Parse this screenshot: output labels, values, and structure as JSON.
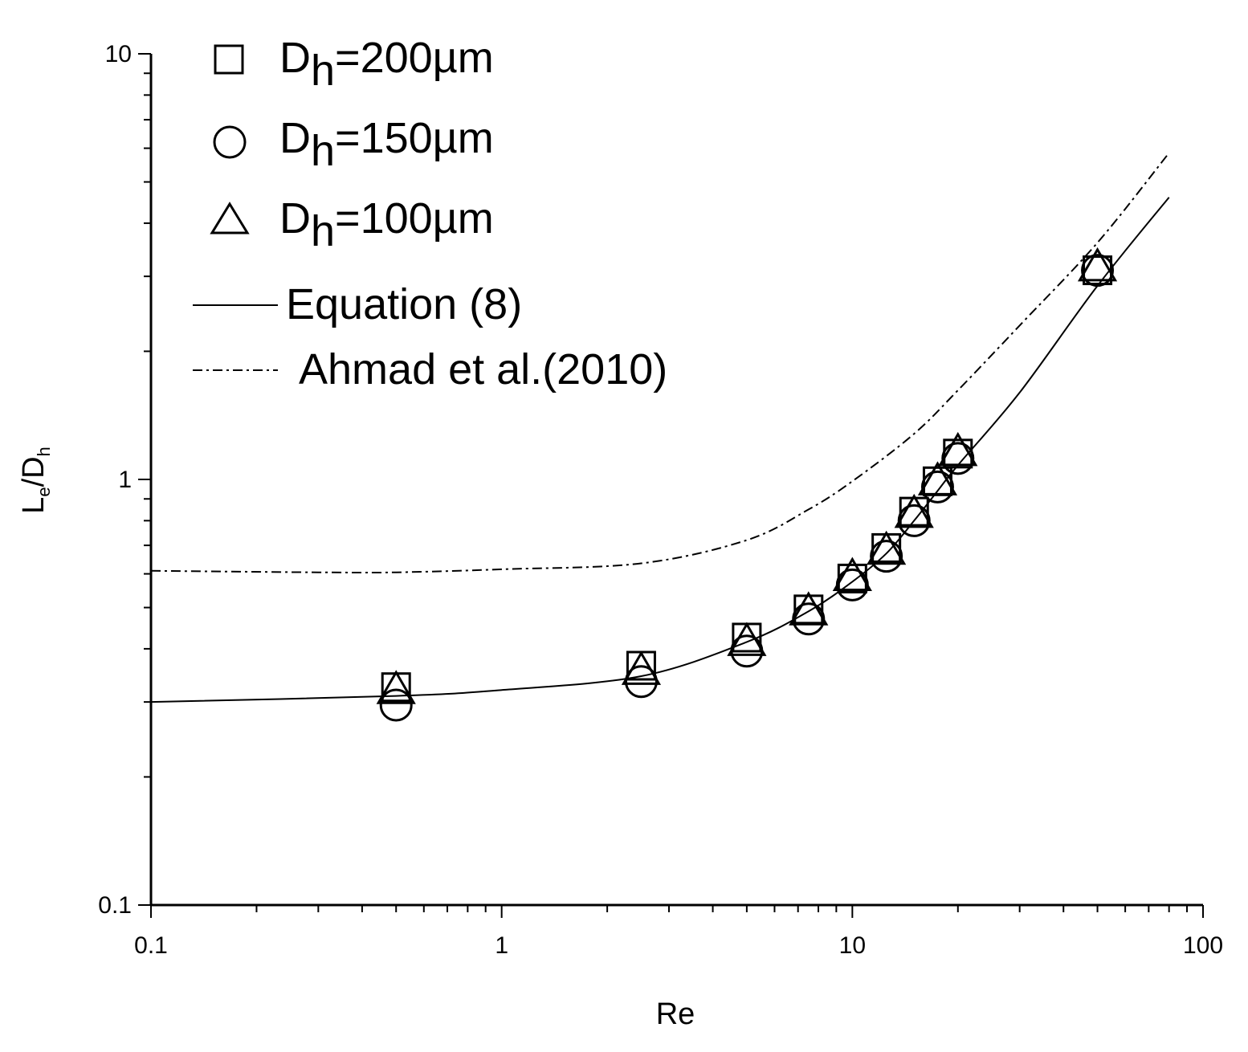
{
  "chart_data": {
    "type": "scatter",
    "title": "",
    "x_scale": "log",
    "y_scale": "log",
    "xlim": [
      0.1,
      100
    ],
    "ylim": [
      0.1,
      10
    ],
    "xlabel": "Re",
    "ylabel": {
      "main": "L",
      "sub1": "e",
      "mid": "/D",
      "sub2": "h"
    },
    "x_ticks": [
      0.1,
      1,
      10,
      100
    ],
    "x_tick_labels": [
      "0.1",
      "1",
      "10",
      "100"
    ],
    "y_ticks": [
      0.1,
      1,
      10
    ],
    "y_tick_labels": [
      "0.1",
      "1",
      "10"
    ],
    "legend_position": "top-left",
    "series": [
      {
        "name": "D_h=200µm",
        "label_main": "D",
        "label_sub": "h",
        "label_rest": "=200µm",
        "marker": "square",
        "x": [
          0.5,
          2.5,
          5,
          7.5,
          10,
          12.5,
          15,
          17.5,
          20,
          50
        ],
        "y": [
          0.325,
          0.365,
          0.425,
          0.495,
          0.585,
          0.69,
          0.84,
          0.99,
          1.15,
          3.1
        ]
      },
      {
        "name": "D_h=150µm",
        "label_main": "D",
        "label_sub": "h",
        "label_rest": "=150µm",
        "marker": "circle",
        "x": [
          0.5,
          2.5,
          5,
          7.5,
          10,
          12.5,
          15,
          17.5,
          20,
          50
        ],
        "y": [
          0.295,
          0.335,
          0.395,
          0.47,
          0.565,
          0.66,
          0.8,
          0.96,
          1.12,
          3.1
        ]
      },
      {
        "name": "D_h=100µm",
        "label_main": "D",
        "label_sub": "h",
        "label_rest": "=100µm",
        "marker": "triangle",
        "x": [
          0.5,
          2.5,
          5,
          7.5,
          10,
          12.5,
          15,
          17.5,
          20,
          50
        ],
        "y": [
          0.32,
          0.355,
          0.415,
          0.49,
          0.59,
          0.68,
          0.83,
          0.99,
          1.16,
          3.15
        ]
      },
      {
        "name": "Equation (8)",
        "style": "solid",
        "x": [
          0.1,
          0.5,
          1,
          2.5,
          5,
          7.5,
          10,
          12.5,
          15,
          17.5,
          20,
          30,
          50,
          80
        ],
        "y": [
          0.3,
          0.31,
          0.32,
          0.345,
          0.415,
          0.49,
          0.575,
          0.67,
          0.8,
          0.94,
          1.08,
          1.6,
          2.85,
          4.6
        ]
      },
      {
        "name": "Ahmad et al.(2010)",
        "style": "dash-dot",
        "x": [
          0.1,
          0.3,
          0.5,
          1,
          2.5,
          5,
          7.5,
          10,
          15,
          20,
          30,
          50,
          80
        ],
        "y": [
          0.61,
          0.605,
          0.605,
          0.615,
          0.635,
          0.72,
          0.85,
          0.99,
          1.28,
          1.62,
          2.3,
          3.6,
          5.85
        ]
      }
    ]
  }
}
